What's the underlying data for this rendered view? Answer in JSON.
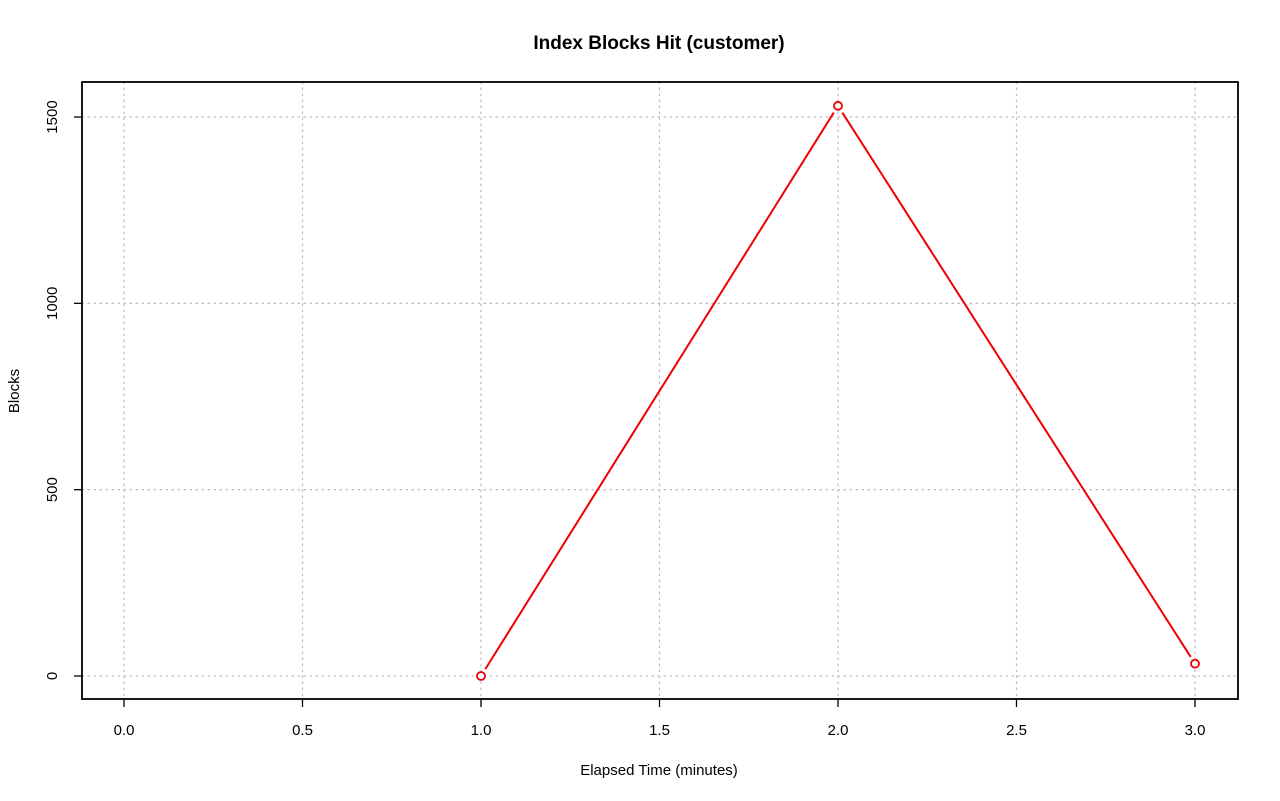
{
  "chart_data": {
    "type": "line",
    "title": "Index Blocks Hit (customer)",
    "xlabel": "Elapsed Time (minutes)",
    "ylabel": "Blocks",
    "xlim": [
      0,
      3
    ],
    "ylim": [
      0,
      1530
    ],
    "xticks": [
      0.0,
      0.5,
      1.0,
      1.5,
      2.0,
      2.5,
      3.0
    ],
    "xtick_labels": [
      "0.0",
      "0.5",
      "1.0",
      "1.5",
      "2.0",
      "2.5",
      "3.0"
    ],
    "yticks": [
      0,
      500,
      1000,
      1500
    ],
    "ytick_labels": [
      "0",
      "500",
      "1000",
      "1500"
    ],
    "grid": true,
    "series": [
      {
        "color": "#ee0000",
        "x": [
          1.0,
          2.0,
          3.0
        ],
        "y": [
          0,
          1530,
          33
        ]
      }
    ]
  }
}
